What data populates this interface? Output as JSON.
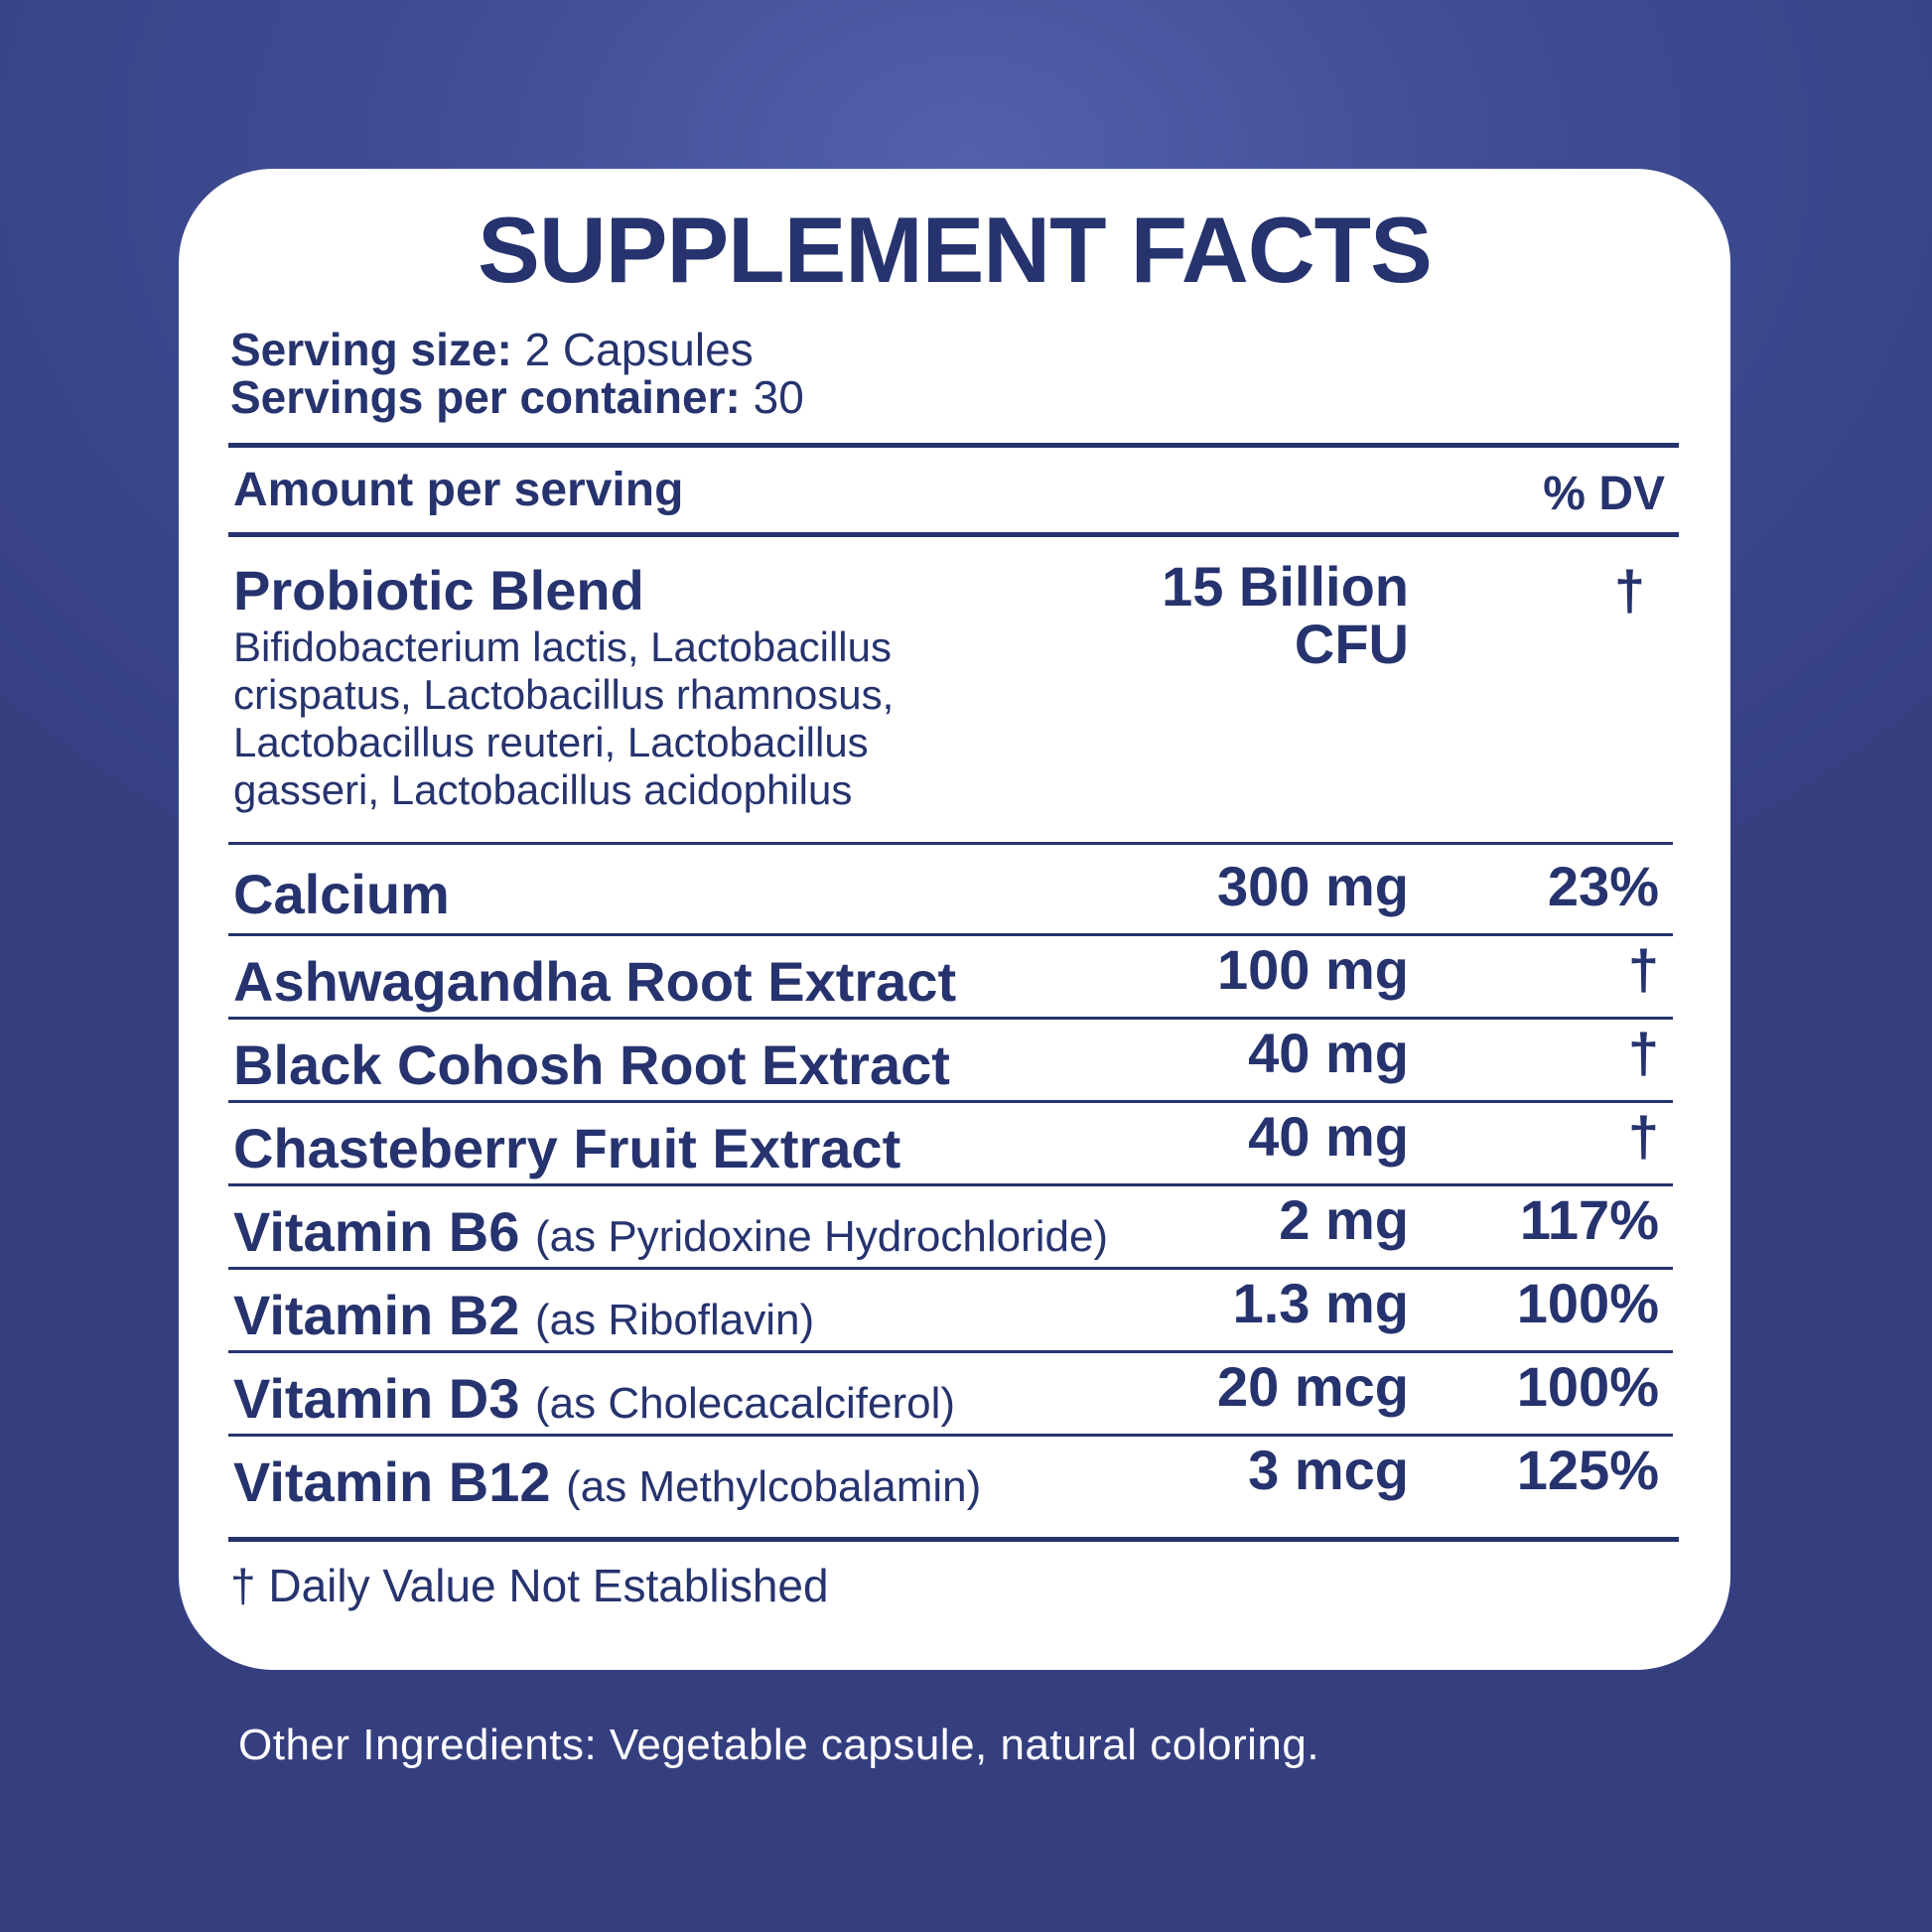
{
  "title": "SUPPLEMENT FACTS",
  "serving_size": {
    "label": "Serving size:",
    "value": "2 Capsules"
  },
  "servings_per_container": {
    "label": "Servings per container:",
    "value": "30"
  },
  "header": {
    "amount": "Amount per serving",
    "dv": "% DV"
  },
  "probiotic": {
    "name": "Probiotic Blend",
    "amount_line1": "15 Billion",
    "amount_line2": "CFU",
    "dv": "†",
    "strains_line1": "Bifidobacterium lactis, Lactobacillus",
    "strains_line2": "crispatus, Lactobacillus rhamnosus,",
    "strains_line3": "Lactobacillus reuteri, Lactobacillus",
    "strains_line4": "gasseri, Lactobacillus acidophilus"
  },
  "rows": [
    {
      "name": "Calcium",
      "note": "",
      "amount": "300 mg",
      "dv": "23%"
    },
    {
      "name": "Ashwagandha Root Extract",
      "note": "",
      "amount": "100 mg",
      "dv": "†"
    },
    {
      "name": "Black Cohosh Root Extract",
      "note": "",
      "amount": "40 mg",
      "dv": "†"
    },
    {
      "name": "Chasteberry Fruit Extract",
      "note": "",
      "amount": "40 mg",
      "dv": "†"
    },
    {
      "name": "Vitamin B6",
      "note": "(as Pyridoxine Hydrochloride)",
      "amount": "2 mg",
      "dv": "117%"
    },
    {
      "name": "Vitamin B2",
      "note": "(as Riboflavin)",
      "amount": "1.3 mg",
      "dv": "100%"
    },
    {
      "name": "Vitamin D3",
      "note": "(as Cholecacalciferol)",
      "amount": "20 mcg",
      "dv": "100%"
    },
    {
      "name": "Vitamin B12",
      "note": "(as Methylcobalamin)",
      "amount": "3 mcg",
      "dv": "125%"
    }
  ],
  "footnote": "† Daily Value Not Established",
  "other_ingredients": "Other Ingredients: Vegetable capsule, natural coloring.",
  "colors": {
    "background": "#3f4b93",
    "panel": "#ffffff",
    "text": "#26336e"
  }
}
